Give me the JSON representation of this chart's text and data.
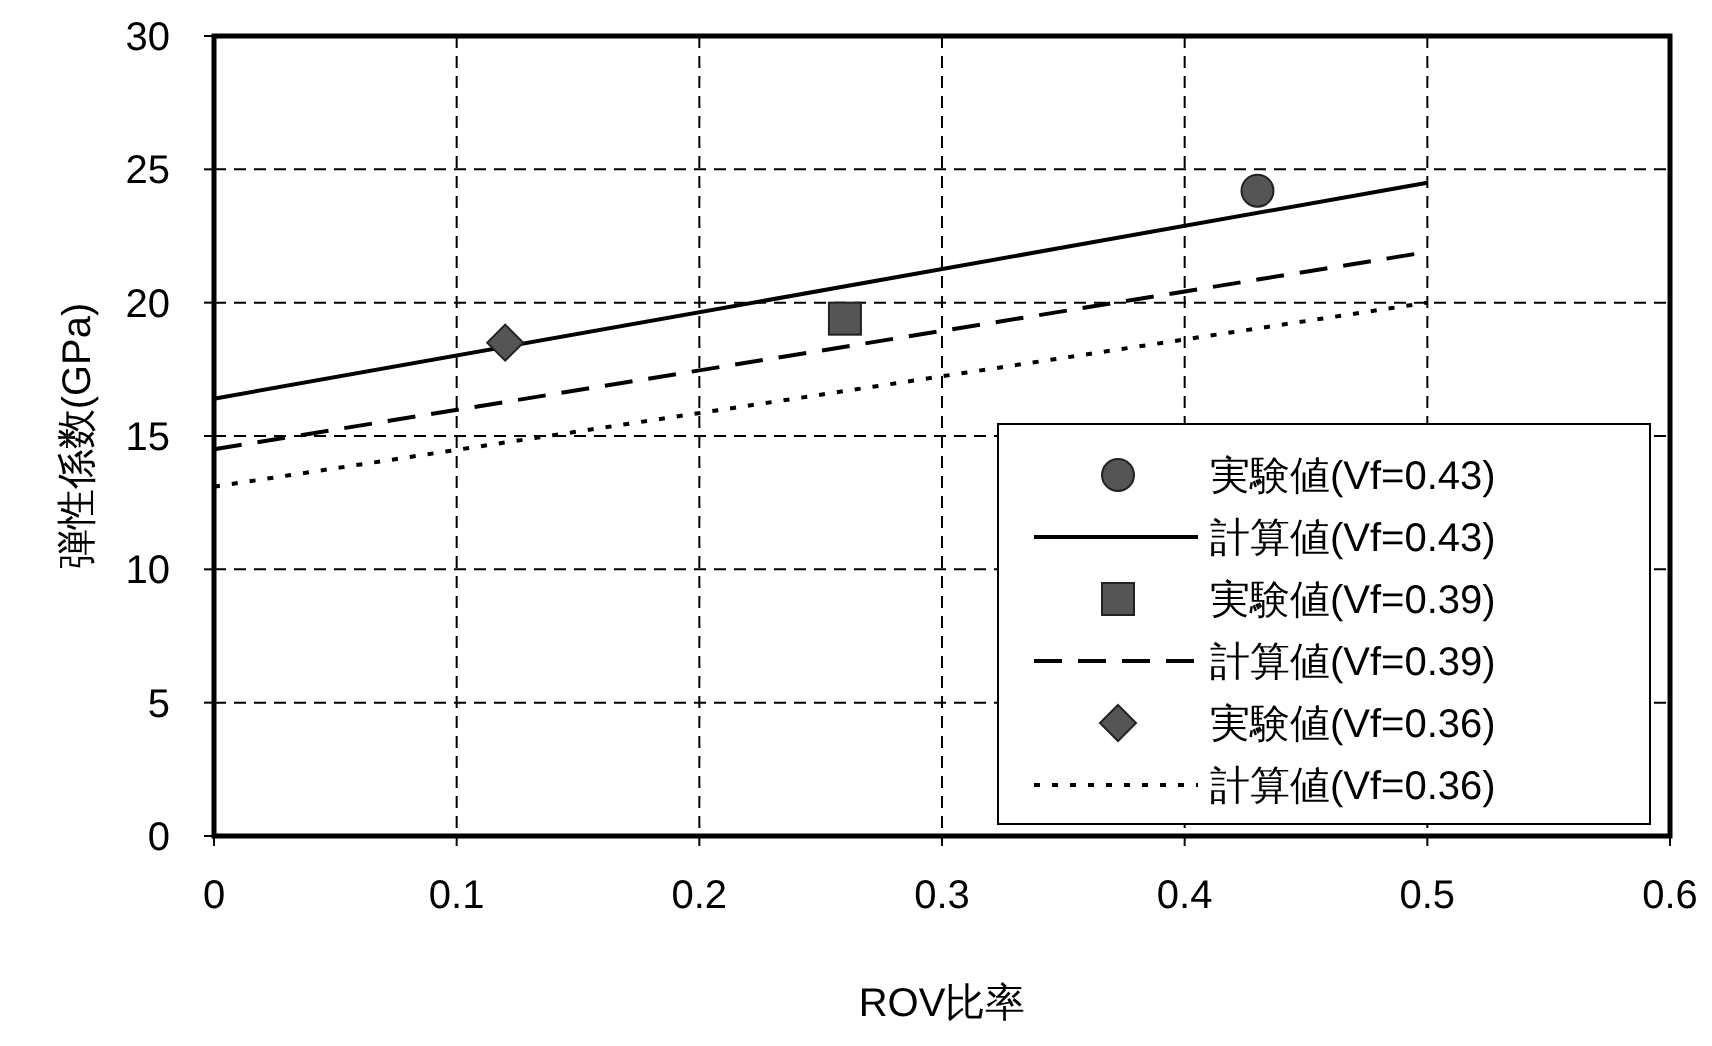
{
  "chart_data": {
    "type": "line",
    "xlabel": "ROV比率",
    "ylabel": "弾性係数(GPa)",
    "xlim": [
      0,
      0.6
    ],
    "ylim": [
      0,
      30
    ],
    "xticks": [
      0,
      0.1,
      0.2,
      0.3,
      0.4,
      0.5,
      0.6
    ],
    "yticks": [
      0,
      5,
      10,
      15,
      20,
      25,
      30
    ],
    "grid": true,
    "legend": "bottom right",
    "series": [
      {
        "name": "実験値(Vf=0.43)",
        "type": "scatter",
        "marker": "circle",
        "color": "#555555",
        "x": [
          0.43
        ],
        "values": [
          24.2
        ]
      },
      {
        "name": "計算値(Vf=0.43)",
        "line_style": "solid",
        "color": "#000000",
        "x": [
          0,
          0.5
        ],
        "values": [
          16.4,
          24.5
        ]
      },
      {
        "name": "実験値(Vf=0.39)",
        "type": "scatter",
        "marker": "square",
        "color": "#555555",
        "x": [
          0.26
        ],
        "values": [
          19.4
        ]
      },
      {
        "name": "計算値(Vf=0.39)",
        "line_style": "dashed",
        "color": "#000000",
        "x": [
          0,
          0.5
        ],
        "values": [
          14.5,
          21.9
        ]
      },
      {
        "name": "実験値(Vf=0.36)",
        "type": "scatter",
        "marker": "diamond",
        "color": "#555555",
        "x": [
          0.12
        ],
        "values": [
          18.5
        ]
      },
      {
        "name": "計算値(Vf=0.36)",
        "line_style": "dotted",
        "color": "#000000",
        "x": [
          0,
          0.5
        ],
        "values": [
          13.1,
          20.0
        ]
      }
    ]
  }
}
